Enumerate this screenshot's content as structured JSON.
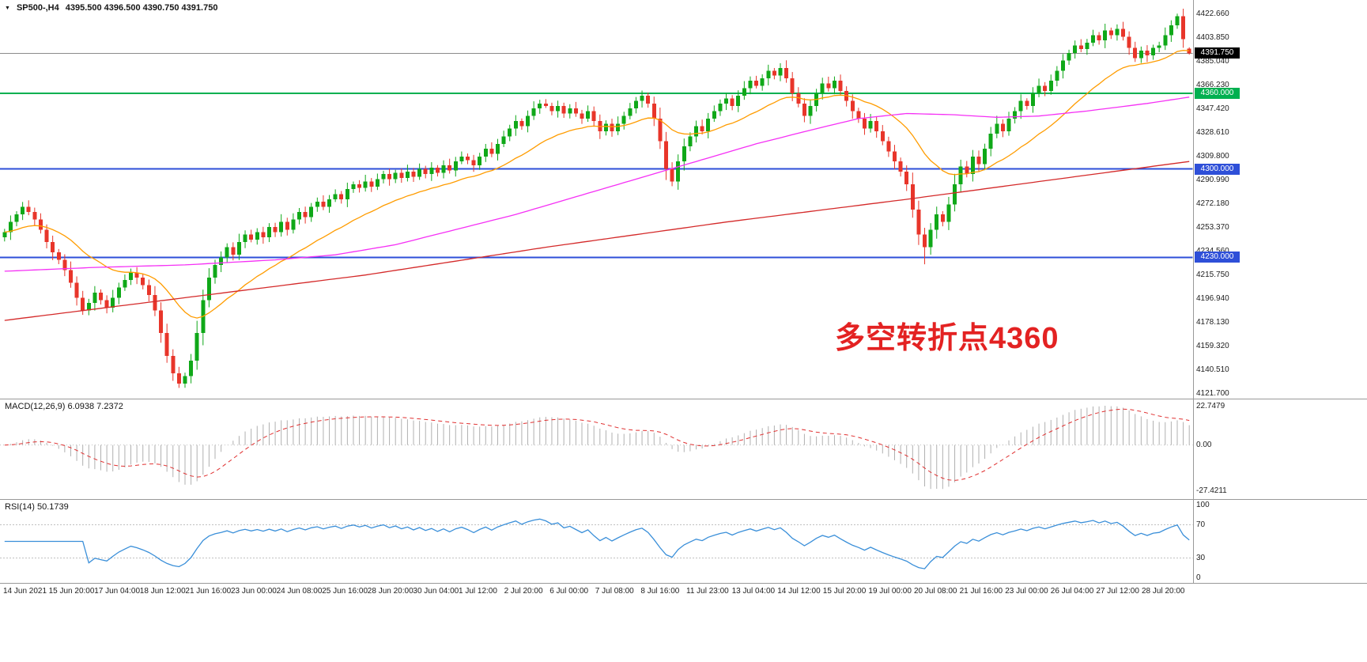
{
  "header": {
    "expander": "▼",
    "symbol_period": "SP500-,H4",
    "ohlc_values": "4395.500 4396.500 4390.750 4391.750"
  },
  "annotation": {
    "text": "多空转折点4360",
    "color": "#e32222"
  },
  "colors": {
    "background": "#ffffff",
    "candle_up": "#0fa818",
    "candle_down": "#e8352a",
    "ma_fast": "#ff9c00",
    "ma_medium": "#f530f5",
    "ma_slow": "#d42a2a",
    "hline_green": "#00b050",
    "hline_blue": "#2e4fd8",
    "current_price_line": "#8a8a8a",
    "current_price_tag_bg": "#000000",
    "macd_histogram": "#b0b0b0",
    "macd_signal": "#e03030",
    "rsi_line": "#3a8fd9",
    "level_dotted": "#c0c0c0",
    "separator": "#999999",
    "axis_text": "#1e1e1e"
  },
  "chart_data": {
    "type": "candlestick",
    "symbol": "SP500-",
    "timeframe": "H4",
    "title": "SP500-,H4",
    "first_open": 4246,
    "closes": [
      4250,
      4258,
      4264,
      4270,
      4266,
      4260,
      4252,
      4242,
      4234,
      4228,
      4220,
      4210,
      4198,
      4188,
      4194,
      4202,
      4196,
      4190,
      4198,
      4206,
      4212,
      4218,
      4214,
      4208,
      4200,
      4188,
      4170,
      4152,
      4138,
      4130,
      4136,
      4148,
      4170,
      4196,
      4214,
      4224,
      4230,
      4238,
      4232,
      4242,
      4248,
      4244,
      4250,
      4246,
      4254,
      4250,
      4258,
      4252,
      4260,
      4266,
      4262,
      4270,
      4274,
      4270,
      4276,
      4280,
      4276,
      4284,
      4288,
      4285,
      4290,
      4286,
      4292,
      4296,
      4292,
      4297,
      4293,
      4298,
      4294,
      4300,
      4296,
      4301,
      4297,
      4303,
      4299,
      4306,
      4310,
      4307,
      4303,
      4310,
      4316,
      4312,
      4320,
      4326,
      4332,
      4338,
      4334,
      4342,
      4348,
      4352,
      4350,
      4346,
      4350,
      4344,
      4348,
      4344,
      4340,
      4346,
      4338,
      4330,
      4336,
      4330,
      4336,
      4342,
      4348,
      4354,
      4358,
      4352,
      4340,
      4322,
      4300,
      4290,
      4306,
      4318,
      4326,
      4334,
      4330,
      4340,
      4346,
      4352,
      4356,
      4350,
      4358,
      4364,
      4370,
      4366,
      4372,
      4378,
      4374,
      4380,
      4372,
      4360,
      4352,
      4342,
      4350,
      4360,
      4368,
      4364,
      4370,
      4362,
      4354,
      4346,
      4340,
      4332,
      4338,
      4330,
      4322,
      4314,
      4306,
      4298,
      4288,
      4268,
      4248,
      4238,
      4252,
      4264,
      4258,
      4272,
      4288,
      4302,
      4296,
      4310,
      4304,
      4316,
      4328,
      4336,
      4330,
      4340,
      4346,
      4354,
      4350,
      4360,
      4366,
      4362,
      4370,
      4378,
      4386,
      4392,
      4398,
      4395,
      4400,
      4406,
      4402,
      4410,
      4406,
      4411,
      4405,
      4396,
      4388,
      4394,
      4390,
      4396,
      4398,
      4406,
      4414,
      4421,
      4403,
      4391.75
    ],
    "current_bar": {
      "open": 4395.5,
      "high": 4396.5,
      "low": 4390.75,
      "close": 4391.75
    },
    "low_overrides": {
      "29": 4126.5,
      "153": 4224.5
    },
    "high_overrides": {
      "195": 4423.2
    },
    "price_axis": {
      "min": 4118,
      "max": 4434,
      "ticks": [
        {
          "value": 4422.66,
          "text": "4422.660"
        },
        {
          "value": 4403.85,
          "text": "4403.850"
        },
        {
          "value": 4385.04,
          "text": "4385.040"
        },
        {
          "value": 4366.23,
          "text": "4366.230"
        },
        {
          "value": 4347.42,
          "text": "4347.420"
        },
        {
          "value": 4328.61,
          "text": "4328.610"
        },
        {
          "value": 4309.8,
          "text": "4309.800"
        },
        {
          "value": 4290.99,
          "text": "4290.990"
        },
        {
          "value": 4272.18,
          "text": "4272.180"
        },
        {
          "value": 4253.37,
          "text": "4253.370"
        },
        {
          "value": 4234.56,
          "text": "4234.560"
        },
        {
          "value": 4215.75,
          "text": "4215.750"
        },
        {
          "value": 4196.94,
          "text": "4196.940"
        },
        {
          "value": 4178.13,
          "text": "4178.130"
        },
        {
          "value": 4159.32,
          "text": "4159.320"
        },
        {
          "value": 4140.51,
          "text": "4140.510"
        },
        {
          "value": 4121.7,
          "text": "4121.700"
        }
      ]
    },
    "horizontal_lines": [
      {
        "value": 4391.75,
        "label": "4391.750",
        "type": "current_price"
      },
      {
        "value": 4360.0,
        "label": "4360.000",
        "type": "green"
      },
      {
        "value": 4300.0,
        "label": "4300.000",
        "type": "blue"
      },
      {
        "value": 4230.0,
        "label": "4230.000",
        "type": "blue"
      }
    ],
    "moving_averages": [
      {
        "name": "fast-ma",
        "style": "ema",
        "period": 21,
        "color_key": "ma_fast"
      },
      {
        "name": "medium-ma",
        "style": "waypoints",
        "color_key": "ma_medium",
        "points": [
          [
            0,
            4219
          ],
          [
            15,
            4222
          ],
          [
            30,
            4224
          ],
          [
            45,
            4228
          ],
          [
            55,
            4232
          ],
          [
            65,
            4240
          ],
          [
            75,
            4252
          ],
          [
            85,
            4264
          ],
          [
            95,
            4278
          ],
          [
            105,
            4292
          ],
          [
            115,
            4306
          ],
          [
            125,
            4320
          ],
          [
            135,
            4332
          ],
          [
            142,
            4340
          ],
          [
            150,
            4344
          ],
          [
            158,
            4343
          ],
          [
            165,
            4341
          ],
          [
            172,
            4342
          ],
          [
            180,
            4346
          ],
          [
            190,
            4352
          ],
          [
            197,
            4357
          ]
        ]
      },
      {
        "name": "slow-ma",
        "style": "waypoints",
        "color_key": "ma_slow",
        "points": [
          [
            0,
            4180
          ],
          [
            30,
            4198
          ],
          [
            60,
            4216
          ],
          [
            90,
            4238
          ],
          [
            120,
            4258
          ],
          [
            150,
            4276
          ],
          [
            175,
            4292
          ],
          [
            197,
            4306
          ]
        ]
      }
    ],
    "x_labels": [
      "14 Jun 2021",
      "15 Jun 20:00",
      "17 Jun 04:00",
      "18 Jun 12:00",
      "21 Jun 16:00",
      "23 Jun 00:00",
      "24 Jun 08:00",
      "25 Jun 16:00",
      "28 Jun 20:00",
      "30 Jun 04:00",
      "1 Jul 12:00",
      "2 Jul 20:00",
      "6 Jul 00:00",
      "7 Jul 08:00",
      "8 Jul 16:00",
      "11 Jul 23:00",
      "13 Jul 04:00",
      "14 Jul 12:00",
      "15 Jul 20:00",
      "19 Jul 00:00",
      "20 Jul 08:00",
      "21 Jul 16:00",
      "23 Jul 00:00",
      "26 Jul 04:00",
      "27 Jul 12:00",
      "28 Jul 20:00"
    ],
    "macd": {
      "label": "MACD(12,26,9) 6.0938 7.2372",
      "params": [
        12,
        26,
        9
      ],
      "value": 6.0938,
      "signal": 7.2372,
      "axis": {
        "min": -32,
        "max": 27
      },
      "axis_labels": [
        {
          "value": 22.7479,
          "text": "22.7479"
        },
        {
          "value": 0,
          "text": "0.00"
        },
        {
          "value": -27.4211,
          "text": "-27.4211"
        }
      ]
    },
    "rsi": {
      "label": "RSI(14) 50.1739",
      "period": 14,
      "value": 50.1739,
      "axis": {
        "min": 0,
        "max": 100
      },
      "levels": [
        70,
        30
      ],
      "axis_labels": [
        {
          "value": 100,
          "text": "100"
        },
        {
          "value": 70,
          "text": "70"
        },
        {
          "value": 30,
          "text": "30"
        },
        {
          "value": 0,
          "text": "0"
        }
      ]
    }
  }
}
